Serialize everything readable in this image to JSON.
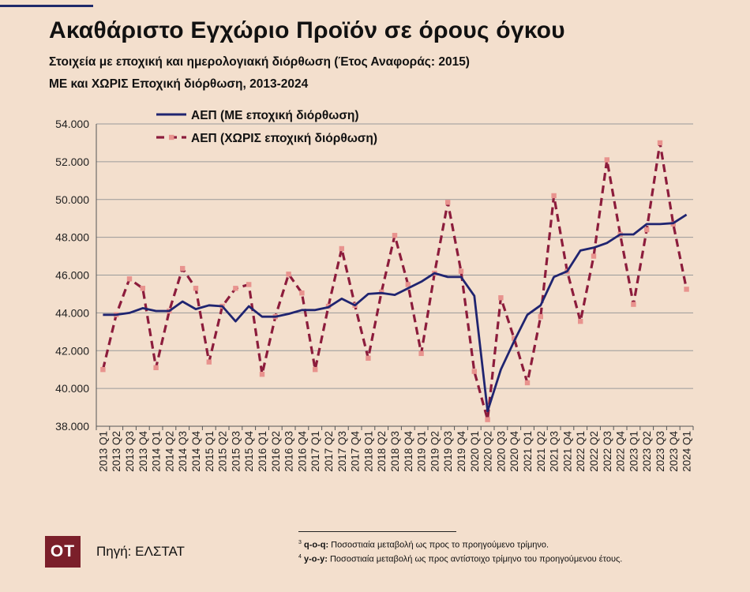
{
  "title": "Ακαθάριστο Εγχώριο Προϊόν σε όρους όγκου",
  "subtitle_line1": "Στοιχεία με εποχική και ημερολογιακή διόρθωση (Έτος Αναφοράς: 2015)",
  "subtitle_line2": "ΜΕ και ΧΩΡΙΣ Εποχική διόρθωση, 2013-2024",
  "source": {
    "logo_text": "OT",
    "text": "Πηγή: ΕΛΣΤΑΤ"
  },
  "footnotes": [
    {
      "num": "3",
      "term": "q-o-q:",
      "text": " Ποσοστιαία μεταβολή ως προς το προηγούμενο τρίμηνο."
    },
    {
      "num": "4",
      "term": "y-o-y:",
      "text": " Ποσοστιαία μεταβολή ως προς αντίστοιχο τρίμηνο του προηγούμενου έτους."
    }
  ],
  "colors": {
    "background": "#f3dfcd",
    "sa_line": "#1f2470",
    "nsa_line": "#8c1c3c",
    "nsa_marker": "#e8938e",
    "grid": "#9a9a9a"
  },
  "chart_data": {
    "type": "line",
    "ylim": [
      38000,
      54000
    ],
    "yticks": [
      "38.000",
      "40.000",
      "42.000",
      "44.000",
      "46.000",
      "48.000",
      "50.000",
      "52.000",
      "54.000"
    ],
    "grid": true,
    "legend_position": "top-left",
    "categories": [
      "2013 Q1",
      "2013 Q2",
      "2013 Q3",
      "2013 Q4",
      "2014 Q1",
      "2014 Q2",
      "2014 Q3",
      "2014 Q4",
      "2015 Q1",
      "2015 Q2",
      "2015 Q3",
      "2015 Q4",
      "2016 Q1",
      "2016 Q2",
      "2016 Q3",
      "2016 Q4",
      "2017 Q1",
      "2017 Q2",
      "2017 Q3",
      "2017 Q4",
      "2018 Q1",
      "2018 Q2",
      "2018 Q3",
      "2018 Q4",
      "2019 Q1",
      "2019 Q2",
      "2019 Q3",
      "2019 Q4",
      "2020 Q1",
      "2020 Q2",
      "2020 Q3",
      "2020 Q4",
      "2021 Q1",
      "2021 Q2",
      "2021 Q3",
      "2021 Q4",
      "2022 Q1",
      "2022 Q2",
      "2022 Q3",
      "2022 Q4",
      "2023 Q1",
      "2023 Q2",
      "2023 Q3",
      "2023 Q4",
      "2024 Q1"
    ],
    "series": [
      {
        "name": "ΑΕΠ (ΜΕ εποχική διόρθωση)",
        "style": "solid",
        "values": [
          43900,
          43900,
          44000,
          44250,
          44100,
          44100,
          44600,
          44200,
          44400,
          44350,
          43550,
          44350,
          43800,
          43800,
          43950,
          44150,
          44150,
          44300,
          44750,
          44400,
          45000,
          45050,
          44950,
          45300,
          45650,
          46100,
          45900,
          45900,
          44900,
          38800,
          41000,
          42500,
          43900,
          44400,
          45900,
          46200,
          47300,
          47450,
          47700,
          48150,
          48150,
          48700,
          48700,
          48750,
          49200
        ]
      },
      {
        "name": "ΑΕΠ (ΧΩΡΙΣ εποχική διόρθωση)",
        "style": "dashed",
        "values": [
          41000,
          43900,
          45800,
          45300,
          41100,
          44100,
          46350,
          45300,
          41400,
          44350,
          45300,
          45500,
          40750,
          43800,
          46050,
          45050,
          41000,
          44350,
          47400,
          44400,
          41600,
          45100,
          48100,
          45500,
          41850,
          46100,
          49850,
          46200,
          40900,
          38350,
          44800,
          42650,
          40300,
          43800,
          50200,
          46200,
          43550,
          47000,
          52100,
          48150,
          44450,
          48400,
          53000,
          48700,
          45250
        ]
      }
    ]
  }
}
